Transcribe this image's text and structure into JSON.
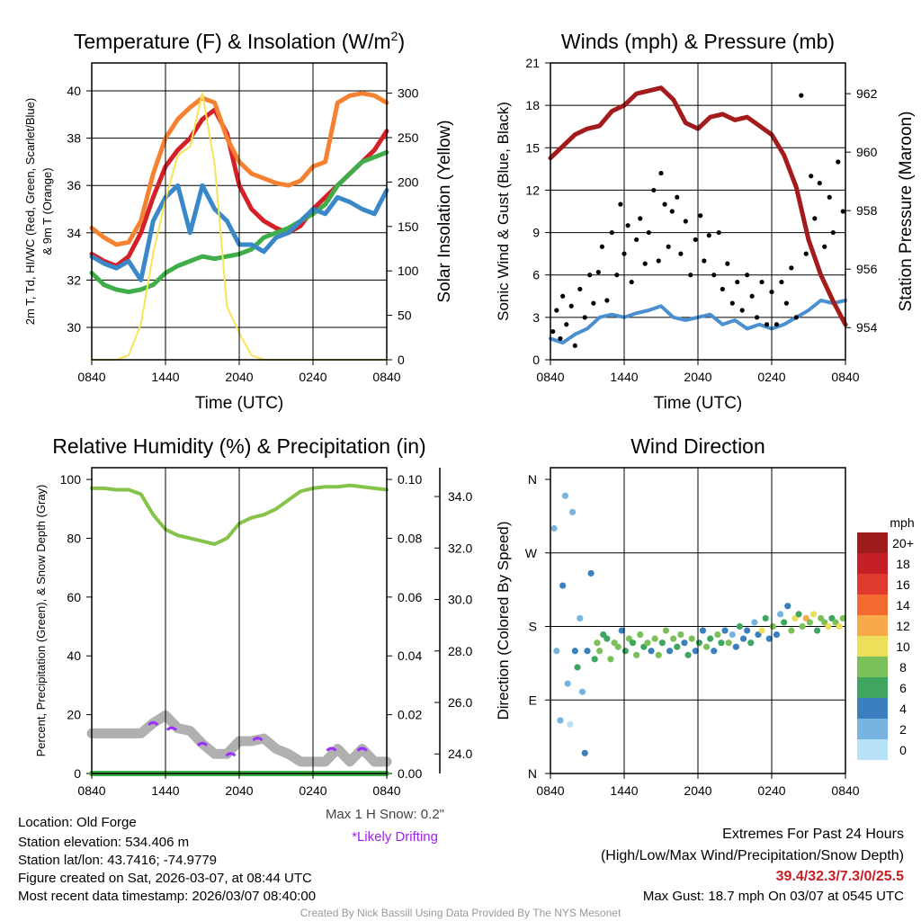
{
  "chart_data": [
    {
      "type": "line",
      "title": "Temperature (F) & Insolation (W/m²)",
      "title_main": "Temperature (F) & Insolation (W/m",
      "title_sup": "2",
      "title_end": ")",
      "xlabel": "Time (UTC)",
      "ylabel": "2m T, Td, HI/WC (Red, Green, Scarlet/Blue)",
      "ylabel2": "& 9m T (Orange)",
      "y2label": "Solar Insolation (Yellow)",
      "xticks": [
        "0840",
        "1440",
        "2040",
        "0240",
        "0840"
      ],
      "yticks": [
        30,
        32,
        34,
        36,
        38,
        40
      ],
      "y2ticks": [
        0,
        50,
        100,
        150,
        200,
        250,
        300
      ],
      "ylim": [
        28.63,
        41.18
      ],
      "y2lim": [
        0,
        334
      ],
      "x_hours": [
        0,
        1,
        2,
        3,
        4,
        5,
        6,
        7,
        8,
        9,
        10,
        11,
        12,
        13,
        14,
        15,
        16,
        17,
        18,
        19,
        20,
        21,
        22,
        23,
        24
      ],
      "series": [
        {
          "name": "2m T",
          "color": "#d62027",
          "values": [
            33.1,
            32.8,
            32.6,
            33.0,
            34.0,
            35.5,
            36.8,
            37.5,
            38.0,
            38.8,
            39.2,
            38.2,
            36.0,
            35.0,
            34.5,
            34.2,
            34.0,
            34.3,
            35.0,
            35.5,
            36.0,
            36.5,
            37.0,
            37.5,
            38.3
          ]
        },
        {
          "name": "9m T",
          "color": "#f58231",
          "values": [
            34.2,
            33.8,
            33.5,
            33.6,
            34.5,
            36.5,
            38.0,
            38.8,
            39.3,
            39.7,
            39.5,
            38.0,
            37.0,
            36.5,
            36.3,
            36.1,
            36.0,
            36.2,
            36.8,
            37.0,
            39.5,
            39.8,
            39.9,
            39.8,
            39.5
          ]
        },
        {
          "name": "Td",
          "color": "#3fae49",
          "values": [
            32.3,
            31.8,
            31.6,
            31.5,
            31.6,
            31.8,
            32.3,
            32.6,
            32.8,
            33.0,
            32.9,
            33.0,
            33.1,
            33.3,
            33.8,
            34.0,
            34.2,
            34.5,
            34.8,
            35.2,
            36.0,
            36.5,
            37.0,
            37.2,
            37.4
          ]
        },
        {
          "name": "HI/WC",
          "color": "#3a88c8",
          "values": [
            33.0,
            32.7,
            32.5,
            32.8,
            32.0,
            34.5,
            35.5,
            36.0,
            34.0,
            36.0,
            35.0,
            34.5,
            33.5,
            33.5,
            33.2,
            33.8,
            34.0,
            34.5,
            35.0,
            34.8,
            35.5,
            35.3,
            35.0,
            34.8,
            35.8
          ]
        },
        {
          "name": "Solar Insolation",
          "axis": "right",
          "color": "#f7e45a",
          "values": [
            0,
            0,
            0,
            5,
            40,
            120,
            180,
            230,
            240,
            300,
            220,
            60,
            30,
            5,
            0,
            0,
            0,
            0,
            0,
            0,
            0,
            0,
            0,
            0,
            0
          ]
        }
      ]
    },
    {
      "type": "line",
      "title": "Winds (mph) & Pressure (mb)",
      "xlabel": "Time (UTC)",
      "ylabel": "Sonic Wind & Gust (Blue, Black)",
      "y2label": "Station Pressure (Maroon)",
      "xticks": [
        "0840",
        "1440",
        "2040",
        "0240",
        "0840"
      ],
      "yticks": [
        0,
        3,
        6,
        9,
        12,
        15,
        18,
        21
      ],
      "y2ticks": [
        954,
        956,
        958,
        960,
        962
      ],
      "ylim": [
        0,
        21
      ],
      "y2lim": [
        952.9,
        963.05
      ],
      "x_hours": [
        0,
        1,
        2,
        3,
        4,
        5,
        6,
        7,
        8,
        9,
        10,
        11,
        12,
        13,
        14,
        15,
        16,
        17,
        18,
        19,
        20,
        21,
        22,
        23,
        24
      ],
      "series": [
        {
          "name": "Sonic Wind",
          "color": "#4a90d0",
          "values": [
            1.5,
            1.2,
            1.8,
            2.2,
            3,
            3.2,
            3,
            3.3,
            3.5,
            3.8,
            3,
            2.8,
            3,
            3.2,
            2.5,
            2.8,
            2.2,
            2.5,
            2.2,
            2.5,
            3.0,
            3.5,
            4.2,
            4.0,
            4.2
          ]
        },
        {
          "name": "Station Pressure",
          "axis": "right",
          "color": "#a31b1b",
          "values": [
            959.8,
            960.2,
            960.6,
            960.8,
            960.9,
            961.4,
            961.6,
            962.0,
            962.1,
            962.2,
            961.8,
            961.0,
            960.8,
            961.2,
            961.3,
            961.1,
            961.2,
            960.9,
            960.6,
            959.9,
            958.8,
            957.0,
            955.8,
            954.9,
            954.1
          ]
        }
      ],
      "gusts": [
        [
          0.2,
          2
        ],
        [
          0.5,
          3.5
        ],
        [
          0.8,
          1.5
        ],
        [
          1.0,
          4.5
        ],
        [
          1.3,
          2.5
        ],
        [
          1.7,
          3.8
        ],
        [
          2.0,
          1
        ],
        [
          2.4,
          5
        ],
        [
          2.8,
          3
        ],
        [
          3.2,
          6
        ],
        [
          3.5,
          4
        ],
        [
          3.9,
          6.2
        ],
        [
          4.2,
          8
        ],
        [
          4.6,
          4.2
        ],
        [
          5.0,
          9
        ],
        [
          5.4,
          6
        ],
        [
          5.7,
          11
        ],
        [
          6.0,
          7.5
        ],
        [
          6.3,
          9.5
        ],
        [
          6.6,
          5.5
        ],
        [
          7.0,
          8.5
        ],
        [
          7.3,
          10
        ],
        [
          7.7,
          6.8
        ],
        [
          8.0,
          9
        ],
        [
          8.4,
          12
        ],
        [
          8.8,
          7
        ],
        [
          9.0,
          13.2
        ],
        [
          9.3,
          11
        ],
        [
          9.6,
          8
        ],
        [
          9.9,
          10.5
        ],
        [
          10.3,
          11.5
        ],
        [
          10.6,
          7.5
        ],
        [
          11.0,
          9.8
        ],
        [
          11.4,
          6
        ],
        [
          11.8,
          8.5
        ],
        [
          12.2,
          10.2
        ],
        [
          12.5,
          7
        ],
        [
          12.9,
          8.8
        ],
        [
          13.3,
          6
        ],
        [
          13.7,
          9
        ],
        [
          14.0,
          5
        ],
        [
          14.4,
          6.8
        ],
        [
          14.8,
          4
        ],
        [
          15.2,
          5.5
        ],
        [
          15.6,
          3.5
        ],
        [
          16.0,
          6
        ],
        [
          16.4,
          4.5
        ],
        [
          16.8,
          3
        ],
        [
          17.2,
          5.5
        ],
        [
          17.6,
          2.5
        ],
        [
          18.0,
          4.8
        ],
        [
          18.4,
          2.5
        ],
        [
          18.8,
          5.5
        ],
        [
          19.2,
          4
        ],
        [
          19.6,
          6.5
        ],
        [
          20.0,
          3
        ],
        [
          20.4,
          18.7
        ],
        [
          20.8,
          7.5
        ],
        [
          21.2,
          13
        ],
        [
          21.5,
          10
        ],
        [
          21.9,
          12.5
        ],
        [
          22.3,
          8
        ],
        [
          22.7,
          11.5
        ],
        [
          23.0,
          9
        ],
        [
          23.4,
          14
        ],
        [
          23.8,
          10.5
        ]
      ]
    },
    {
      "type": "line",
      "title": "Relative Humidity (%) & Precipitation (in)",
      "ylabel": "Percent, Precipitation (Green), & Snow Depth (Gray)",
      "xticks": [
        "0840",
        "1440",
        "2040",
        "0240",
        "0840"
      ],
      "yticks": [
        0,
        20,
        40,
        60,
        80,
        100
      ],
      "y2ticks": [
        "0.00",
        "0.02",
        "0.04",
        "0.06",
        "0.08",
        "0.10"
      ],
      "y3ticks": [
        "24.0",
        "26.0",
        "28.0",
        "30.0",
        "32.0",
        "34.0"
      ],
      "ylim": [
        0,
        104
      ],
      "y2lim": [
        0,
        0.104
      ],
      "y3lim": [
        23.24,
        35.12
      ],
      "x_hours": [
        0,
        1,
        2,
        3,
        4,
        5,
        6,
        7,
        8,
        9,
        10,
        11,
        12,
        13,
        14,
        15,
        16,
        17,
        18,
        19,
        20,
        21,
        22,
        23,
        24
      ],
      "series": [
        {
          "name": "Relative Humidity",
          "color": "#86c34a",
          "values": [
            97,
            97,
            96.5,
            96.5,
            95,
            88,
            83,
            81,
            80,
            79,
            78,
            80,
            85,
            87,
            88,
            90,
            93,
            96,
            97,
            97.5,
            97.5,
            98,
            97.5,
            97,
            96.5
          ]
        },
        {
          "name": "Precipitation",
          "axis": "right",
          "color": "#3fae49",
          "values": [
            0,
            0,
            0,
            0,
            0,
            0,
            0,
            0,
            0,
            0,
            0,
            0,
            0,
            0,
            0,
            0,
            0,
            0,
            0,
            0,
            0,
            0,
            0,
            0,
            0
          ]
        },
        {
          "name": "Snow Depth",
          "axis": "third",
          "color": "#b0b0b0",
          "values": [
            24.8,
            24.8,
            24.8,
            24.8,
            24.8,
            25.2,
            25.5,
            25.0,
            24.9,
            24.4,
            24.0,
            24.0,
            24.5,
            24.5,
            24.6,
            24.2,
            24.0,
            23.7,
            23.7,
            23.7,
            24.2,
            23.7,
            24.2,
            23.7,
            23.7
          ]
        }
      ],
      "drifting_hours": [
        5.0,
        6.5,
        9.0,
        11.3,
        13.5,
        19.5,
        22.0
      ],
      "notes": {
        "max_snow": "Max 1 H Snow: 0.2\"",
        "drifting": "*Likely Drifting"
      }
    },
    {
      "type": "scatter",
      "title": "Wind Direction",
      "ylabel": "Direction (Colored By Speed)",
      "xticks": [
        "0840",
        "1440",
        "2040",
        "0240",
        "0840"
      ],
      "yticks": [
        "E",
        "N",
        "S",
        "W",
        "N"
      ],
      "ylim": [
        0,
        360
      ],
      "legend_title": "mph",
      "legend_labels": [
        "20+",
        "18",
        "16",
        "14",
        "12",
        "10",
        "8",
        "6",
        "4",
        "2",
        "0"
      ],
      "legend_colors": [
        "#9e1b1b",
        "#c62027",
        "#e03a2f",
        "#f26a30",
        "#f9a84a",
        "#ece05a",
        "#7cc05a",
        "#3fa660",
        "#3a80be",
        "#78b4e0",
        "#b8e2f8"
      ],
      "points": [
        [
          0.3,
          300
        ],
        [
          0.5,
          150
        ],
        [
          0.8,
          65
        ],
        [
          1.0,
          230
        ],
        [
          1.2,
          340
        ],
        [
          1.4,
          110
        ],
        [
          1.6,
          60
        ],
        [
          1.8,
          320
        ],
        [
          2.0,
          150
        ],
        [
          2.2,
          130
        ],
        [
          2.4,
          190
        ],
        [
          2.6,
          100
        ],
        [
          2.8,
          25
        ],
        [
          3.0,
          150
        ],
        [
          3.3,
          245
        ],
        [
          3.6,
          140
        ],
        [
          3.8,
          160
        ],
        [
          4.0,
          150
        ],
        [
          4.3,
          170
        ],
        [
          4.6,
          165
        ],
        [
          4.9,
          140
        ],
        [
          5.2,
          160
        ],
        [
          5.5,
          155
        ],
        [
          5.8,
          175
        ],
        [
          6.1,
          150
        ],
        [
          6.4,
          165
        ],
        [
          6.7,
          160
        ],
        [
          7.0,
          145
        ],
        [
          7.3,
          170
        ],
        [
          7.6,
          155
        ],
        [
          7.9,
          160
        ],
        [
          8.2,
          150
        ],
        [
          8.5,
          165
        ],
        [
          8.8,
          145
        ],
        [
          9.1,
          160
        ],
        [
          9.4,
          175
        ],
        [
          9.7,
          150
        ],
        [
          10.0,
          165
        ],
        [
          10.3,
          155
        ],
        [
          10.6,
          170
        ],
        [
          10.9,
          160
        ],
        [
          11.2,
          145
        ],
        [
          11.5,
          165
        ],
        [
          11.8,
          150
        ],
        [
          12.1,
          160
        ],
        [
          12.4,
          175
        ],
        [
          12.7,
          155
        ],
        [
          13.0,
          165
        ],
        [
          13.3,
          150
        ],
        [
          13.6,
          170
        ],
        [
          13.9,
          160
        ],
        [
          14.2,
          175
        ],
        [
          14.5,
          160
        ],
        [
          14.8,
          170
        ],
        [
          15.1,
          155
        ],
        [
          15.4,
          180
        ],
        [
          15.7,
          165
        ],
        [
          16.0,
          175
        ],
        [
          16.3,
          160
        ],
        [
          16.6,
          185
        ],
        [
          16.9,
          170
        ],
        [
          17.2,
          175
        ],
        [
          17.5,
          190
        ],
        [
          17.8,
          165
        ],
        [
          18.1,
          180
        ],
        [
          18.4,
          170
        ],
        [
          18.7,
          195
        ],
        [
          19.0,
          185
        ],
        [
          19.3,
          205
        ],
        [
          19.6,
          175
        ],
        [
          19.9,
          190
        ],
        [
          20.2,
          195
        ],
        [
          20.5,
          180
        ],
        [
          20.8,
          190
        ],
        [
          21.1,
          185
        ],
        [
          21.4,
          195
        ],
        [
          21.7,
          175
        ],
        [
          22.0,
          190
        ],
        [
          22.3,
          185
        ],
        [
          22.6,
          180
        ],
        [
          22.9,
          190
        ],
        [
          23.2,
          185
        ],
        [
          23.5,
          180
        ],
        [
          23.8,
          190
        ]
      ],
      "speeds": [
        1,
        1,
        1,
        2,
        1,
        1,
        0,
        1,
        2,
        3,
        1,
        1,
        2,
        2,
        2,
        3,
        4,
        4,
        3,
        3,
        4,
        4,
        4,
        2,
        3,
        4,
        3,
        4,
        4,
        3,
        4,
        2,
        4,
        4,
        3,
        4,
        2,
        4,
        3,
        4,
        2,
        3,
        4,
        2,
        3,
        2,
        4,
        3,
        2,
        4,
        3,
        2,
        4,
        1,
        2,
        3,
        2,
        2,
        3,
        1,
        2,
        5,
        3,
        2,
        4,
        2,
        1,
        3,
        2,
        4,
        5,
        3,
        4,
        6,
        4,
        5,
        3,
        4,
        4,
        5,
        3,
        4,
        5,
        4
      ]
    }
  ],
  "footer": {
    "location": "Location: Old Forge",
    "elevation": "Station elevation: 534.406 m",
    "latlon": "Station lat/lon: 43.7416; -74.9779",
    "created": "Figure created on Sat, 2026-03-07, at 08:44 UTC",
    "recent": "Most recent data timestamp: 2026/03/07 08:40:00",
    "extremes_title": "Extremes For Past 24 Hours",
    "extremes_sub": "(High/Low/Max Wind/Precipitation/Snow Depth)",
    "extremes_values": "39.4/32.3/7.3/0/25.5",
    "max_gust": "Max Gust: 18.7 mph On 03/07 at 0545 UTC",
    "credit": "Created By Nick Bassill Using Data Provided By The NYS Mesonet"
  }
}
